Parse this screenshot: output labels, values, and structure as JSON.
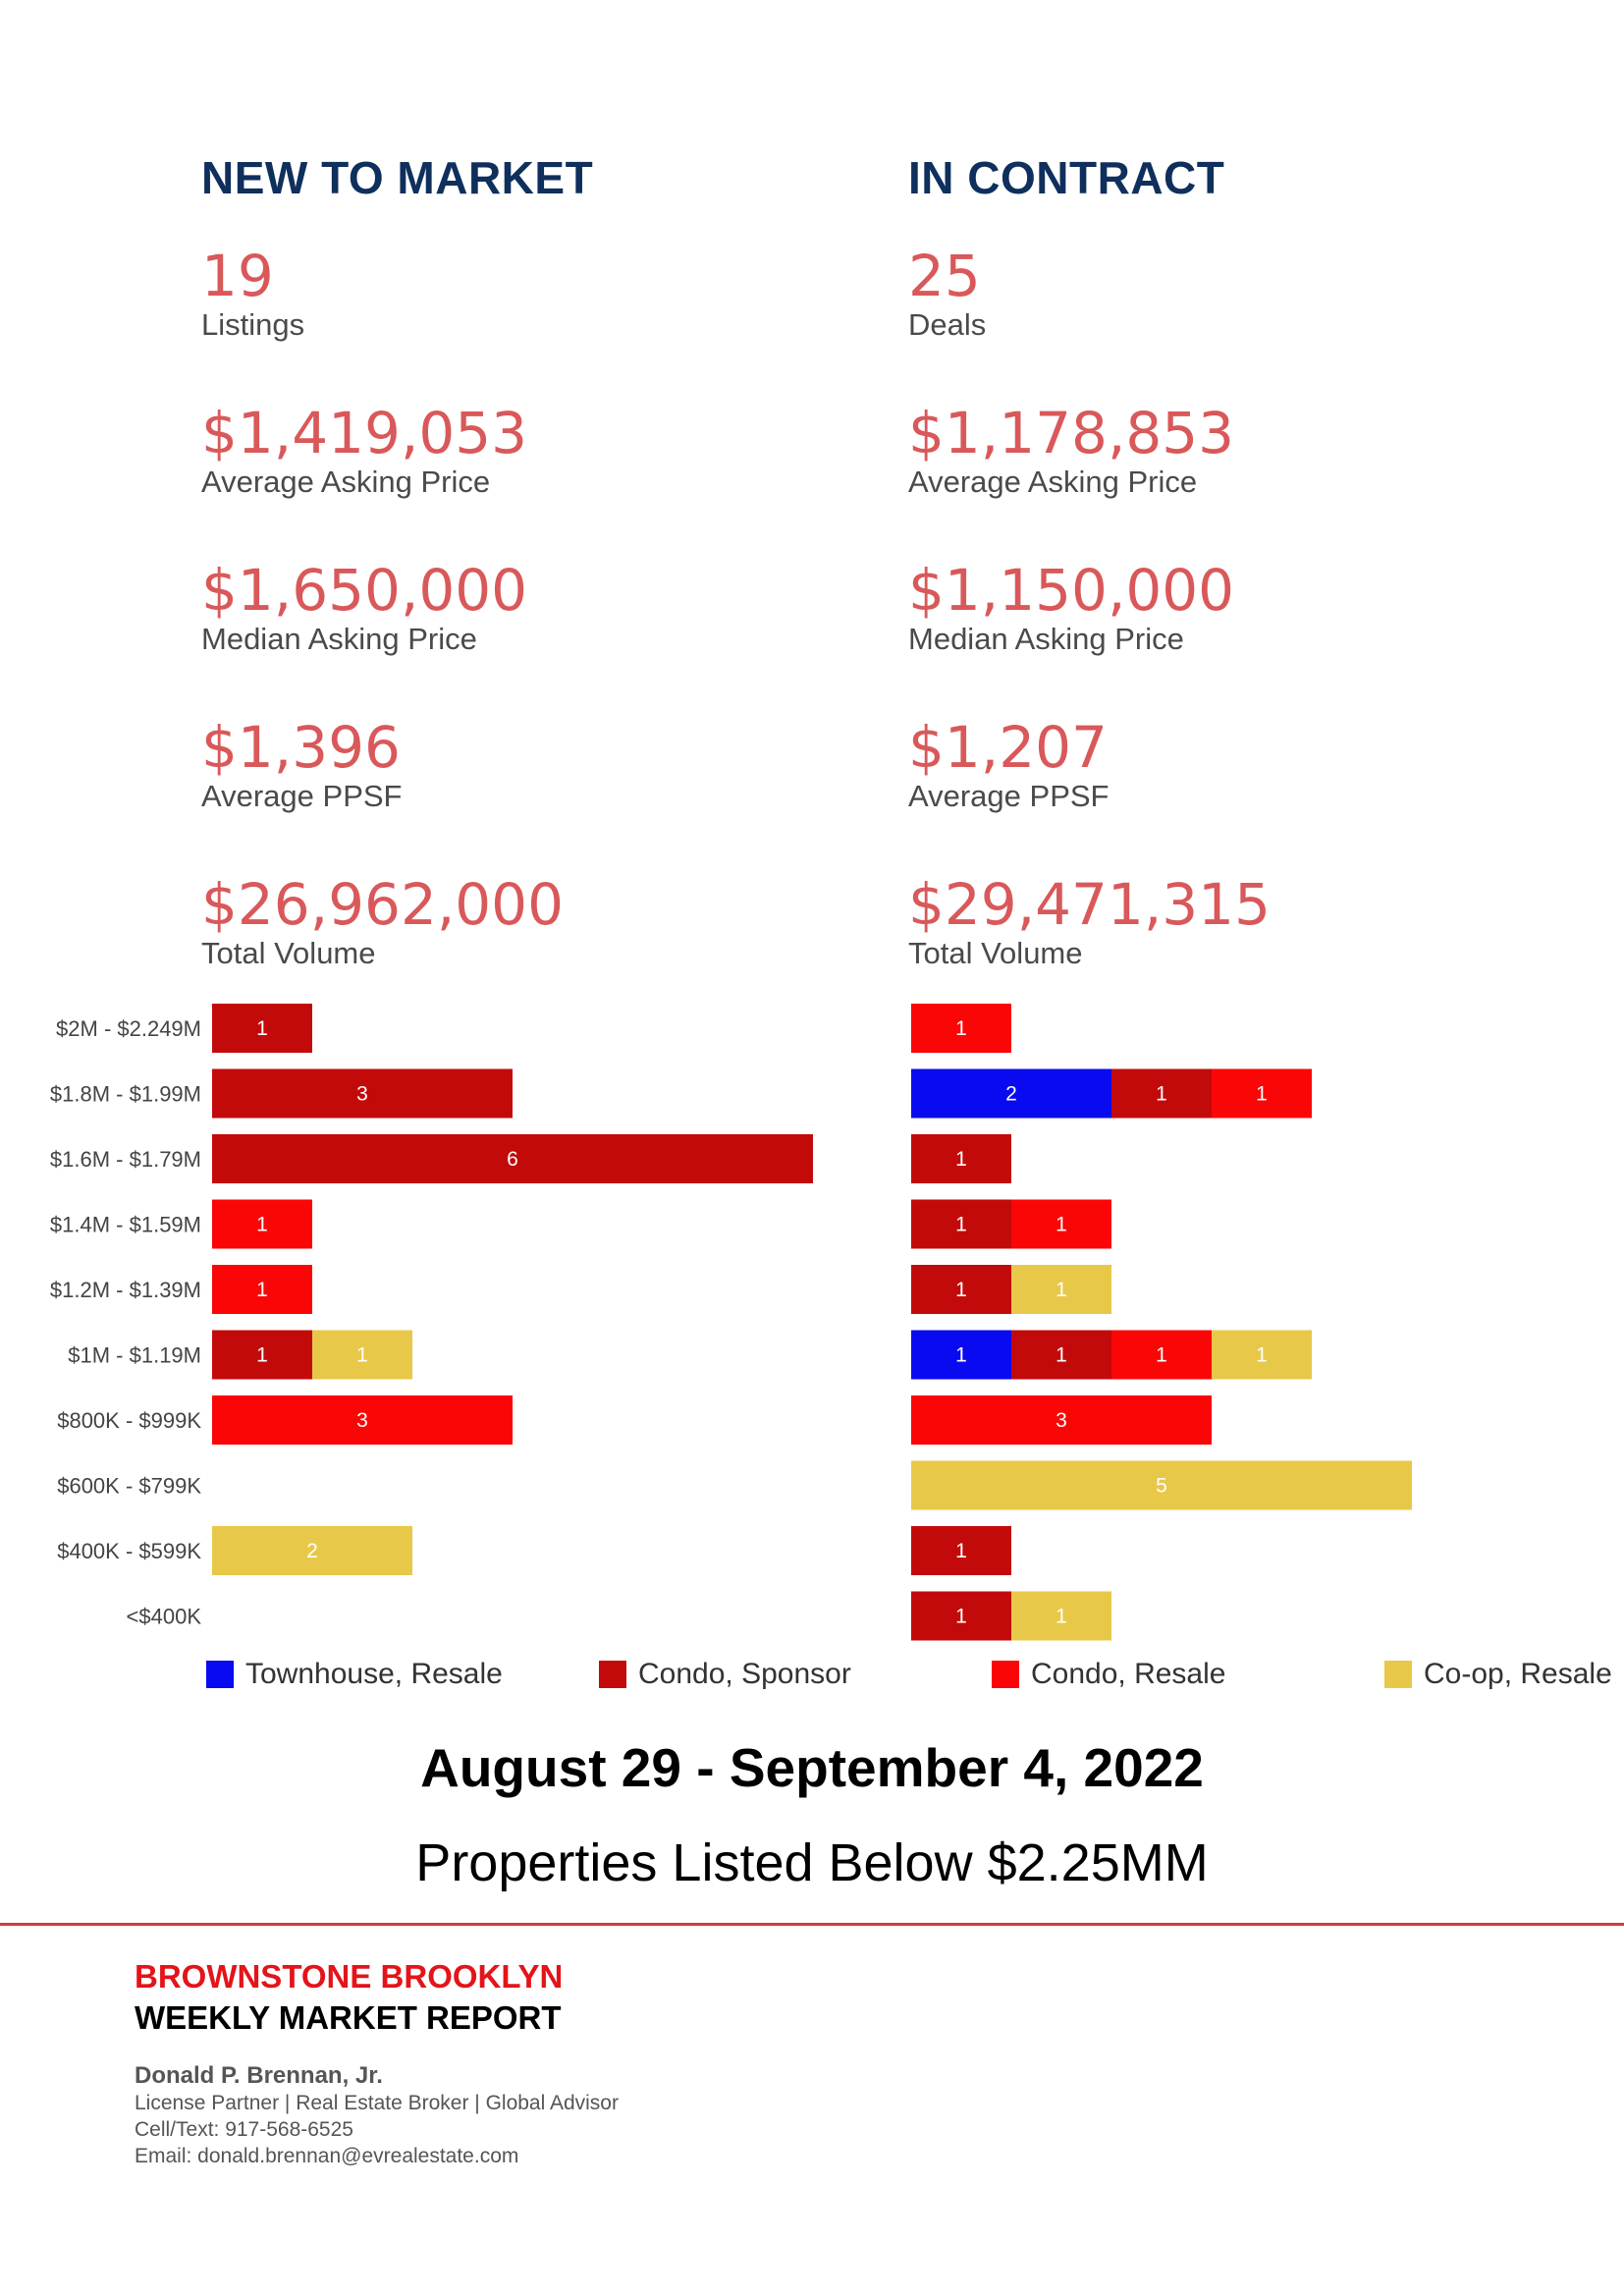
{
  "new_to_market": {
    "title": "NEW TO MARKET",
    "listings": {
      "value": "19",
      "label": "Listings"
    },
    "avg_asking": {
      "value": "$1,419,053",
      "label": "Average Asking Price"
    },
    "median_asking": {
      "value": "$1,650,000",
      "label": "Median Asking Price"
    },
    "avg_ppsf": {
      "value": "$1,396",
      "label": "Average PPSF"
    },
    "total_volume": {
      "value": "$26,962,000",
      "label": "Total Volume"
    }
  },
  "in_contract": {
    "title": "IN CONTRACT",
    "deals": {
      "value": "25",
      "label": "Deals"
    },
    "avg_asking": {
      "value": "$1,178,853",
      "label": "Average Asking Price"
    },
    "median_asking": {
      "value": "$1,150,000",
      "label": "Median Asking Price"
    },
    "avg_ppsf": {
      "value": "$1,207",
      "label": "Average PPSF"
    },
    "total_volume": {
      "value": "$29,471,315",
      "label": "Total Volume"
    }
  },
  "chart_data": {
    "type": "bar",
    "orientation": "horizontal",
    "stacked": true,
    "categories": [
      "$2M - $2.249M",
      "$1.8M - $1.99M",
      "$1.6M - $1.79M",
      "$1.4M - $1.59M",
      "$1.2M - $1.39M",
      "$1M - $1.19M",
      "$800K - $999K",
      "$600K - $799K",
      "$400K - $599K",
      "<$400K"
    ],
    "segment_order": [
      "Townhouse, Resale",
      "Condo, Sponsor",
      "Condo, Resale",
      "Co-op, Resale"
    ],
    "colors": {
      "Townhouse, Resale": "#0a0af0",
      "Condo, Sponsor": "#c30a0a",
      "Condo, Resale": "#fb0606",
      "Co-op, Resale": "#e8c848"
    },
    "panels": [
      {
        "name": "New to Market",
        "series": [
          {
            "name": "Townhouse, Resale",
            "values": [
              0,
              0,
              0,
              0,
              0,
              0,
              0,
              0,
              0,
              0
            ]
          },
          {
            "name": "Condo, Sponsor",
            "values": [
              1,
              3,
              6,
              0,
              0,
              1,
              0,
              0,
              0,
              0
            ]
          },
          {
            "name": "Condo, Resale",
            "values": [
              0,
              0,
              0,
              1,
              1,
              0,
              3,
              0,
              0,
              0
            ]
          },
          {
            "name": "Co-op, Resale",
            "values": [
              0,
              0,
              0,
              0,
              0,
              1,
              0,
              0,
              2,
              0
            ]
          }
        ]
      },
      {
        "name": "In Contract",
        "series": [
          {
            "name": "Townhouse, Resale",
            "values": [
              0,
              2,
              0,
              0,
              0,
              1,
              0,
              0,
              0,
              0
            ]
          },
          {
            "name": "Condo, Sponsor",
            "values": [
              0,
              1,
              1,
              1,
              1,
              1,
              0,
              0,
              1,
              1
            ]
          },
          {
            "name": "Condo, Resale",
            "values": [
              1,
              1,
              0,
              1,
              0,
              1,
              3,
              0,
              0,
              0
            ]
          },
          {
            "name": "Co-op, Resale",
            "values": [
              0,
              0,
              0,
              0,
              1,
              1,
              0,
              5,
              0,
              1
            ]
          }
        ]
      }
    ],
    "legend": [
      "Townhouse, Resale",
      "Condo, Sponsor",
      "Condo, Resale",
      "Co-op, Resale"
    ],
    "legend_position": "bottom"
  },
  "report": {
    "date_range": "August 29 - September 4, 2022",
    "subtitle": "Properties Listed Below $2.25MM",
    "brand": "BROWNSTONE BROOKLYN",
    "report_name": "WEEKLY MARKET REPORT",
    "agent_name": "Donald P. Brennan, Jr.",
    "agent_title": "License Partner | Real Estate Broker | Global Advisor",
    "agent_phone": "Cell/Text: 917-568-6525",
    "agent_email": "Email: donald.brennan@evrealestate.com"
  }
}
